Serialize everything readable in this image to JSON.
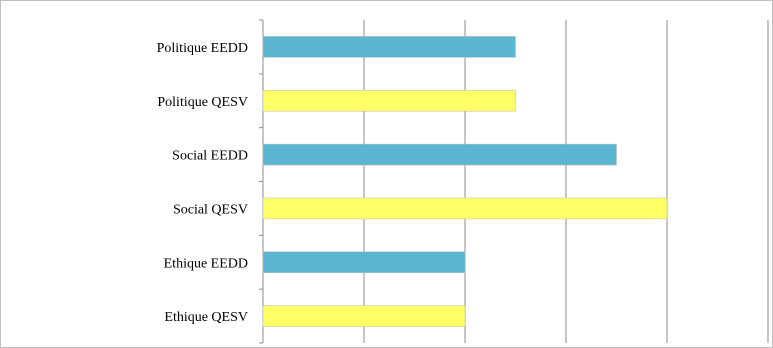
{
  "chart_data": {
    "type": "bar",
    "orientation": "horizontal",
    "title": "",
    "xlabel": "",
    "ylabel": "",
    "categories": [
      "Politique EEDD",
      "Politique QESV",
      "Social EEDD",
      "Social QESV",
      "Ethique EEDD",
      "Ethique QESV"
    ],
    "values": [
      2.5,
      2.5,
      3.5,
      4,
      2,
      2
    ],
    "xlim": [
      0,
      5
    ],
    "x_gridlines": [
      1,
      2,
      3,
      4,
      5
    ],
    "tick_labels_shown": false,
    "grid": true,
    "legend": "none",
    "colors": {
      "EEDD": "#5ab5d1",
      "QESV": "#ffff66",
      "gridline": "#8c8c8c",
      "axis": "#8c8c8c"
    }
  }
}
